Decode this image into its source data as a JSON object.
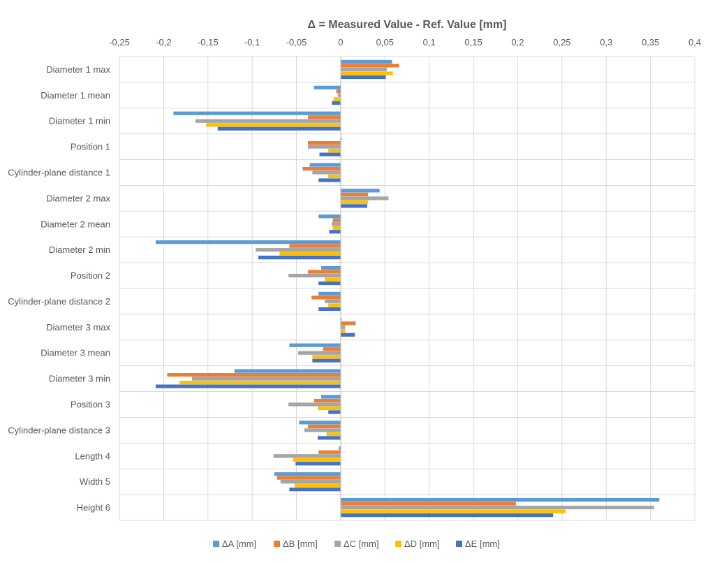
{
  "chart_data": {
    "type": "bar",
    "orientation": "horizontal",
    "title": "Δ = Measured Value - Ref. Value [mm]",
    "xlabel": "",
    "ylabel": "",
    "xlim": [
      -0.25,
      0.4
    ],
    "xticks": [
      -0.25,
      -0.2,
      -0.15,
      -0.1,
      -0.05,
      0,
      0.05,
      0.1,
      0.15,
      0.2,
      0.25,
      0.3,
      0.35,
      0.4
    ],
    "xtick_labels": [
      "-0,25",
      "-0,2",
      "-0,15",
      "-0,1",
      "-0,05",
      "0",
      "0,05",
      "0,1",
      "0,15",
      "0,2",
      "0,25",
      "0,3",
      "0,35",
      "0,4"
    ],
    "axis_position": "top",
    "grid": true,
    "legend_position": "bottom",
    "categories": [
      "Diameter 1 max",
      "Diameter 1 mean",
      "Diameter 1 min",
      "Position 1",
      "Cylinder-plane distance 1",
      "Diameter 2 max",
      "Diameter 2 mean",
      "Diameter 2 min",
      "Position 2",
      "Cylinder-plane distance 2",
      "Diameter 3 max",
      "Diameter 3 mean",
      "Diameter 3 min",
      "Position 3",
      "Cylinder-plane distance 3",
      "Length 4",
      "Width 5",
      "Height 6"
    ],
    "series": [
      {
        "name": "ΔA [mm]",
        "color": "#5B9BD5",
        "values": [
          0.058,
          -0.03,
          -0.189,
          0.001,
          -0.035,
          0.044,
          -0.025,
          -0.209,
          -0.022,
          -0.025,
          0.001,
          -0.058,
          -0.12,
          -0.022,
          -0.047,
          -0.002,
          -0.075,
          0.36
        ]
      },
      {
        "name": "ΔB [mm]",
        "color": "#ED7D31",
        "values": [
          0.066,
          -0.005,
          -0.037,
          -0.037,
          -0.043,
          0.031,
          -0.009,
          -0.058,
          -0.037,
          -0.033,
          0.017,
          -0.02,
          -0.196,
          -0.03,
          -0.037,
          -0.025,
          -0.072,
          0.198
        ]
      },
      {
        "name": "ΔC [mm]",
        "color": "#A5A5A5",
        "values": [
          0.052,
          -0.003,
          -0.164,
          -0.037,
          -0.032,
          0.054,
          -0.01,
          -0.096,
          -0.059,
          -0.018,
          0.005,
          -0.048,
          -0.168,
          -0.059,
          -0.041,
          -0.076,
          -0.068,
          0.354
        ]
      },
      {
        "name": "ΔD [mm]",
        "color": "#FFC000",
        "values": [
          0.059,
          -0.008,
          -0.152,
          -0.014,
          -0.014,
          0.031,
          -0.009,
          -0.069,
          -0.018,
          -0.014,
          0.005,
          -0.032,
          -0.182,
          -0.026,
          -0.016,
          -0.054,
          -0.052,
          0.254
        ]
      },
      {
        "name": "ΔE [mm]",
        "color": "#4472C4",
        "values": [
          0.051,
          -0.01,
          -0.139,
          -0.024,
          -0.025,
          0.03,
          -0.013,
          -0.093,
          -0.025,
          -0.025,
          0.016,
          -0.032,
          -0.209,
          -0.014,
          -0.026,
          -0.051,
          -0.058,
          0.24
        ]
      }
    ]
  }
}
